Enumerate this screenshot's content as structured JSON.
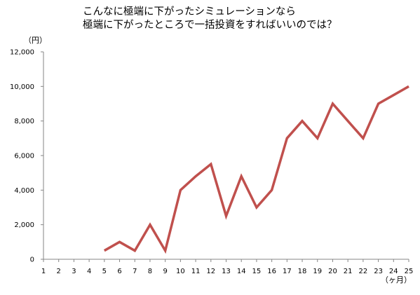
{
  "chart_data": {
    "type": "line",
    "title_lines": [
      "こんなに極端に下がったシミュレーションなら",
      "極端に下がったところで一括投資をすればいいのでは？"
    ],
    "ylabel": "（円）",
    "xlabel": "（ヶ月）",
    "x": [
      1,
      2,
      3,
      4,
      5,
      6,
      7,
      8,
      9,
      10,
      11,
      12,
      13,
      14,
      15,
      16,
      17,
      18,
      19,
      20,
      21,
      22,
      23,
      24,
      25
    ],
    "xlim": [
      1,
      25
    ],
    "ylim": [
      0,
      12000
    ],
    "y_ticks": [
      0,
      2000,
      4000,
      6000,
      8000,
      10000,
      12000
    ],
    "y_tick_labels": [
      "0",
      "2,000",
      "4,000",
      "6,000",
      "8,000",
      "10,000",
      "12,000"
    ],
    "grid": false,
    "legend": "none",
    "series": [
      {
        "color": "#c0504d",
        "points": [
          [
            5,
            500
          ],
          [
            6,
            1000
          ],
          [
            7,
            500
          ],
          [
            8,
            2000
          ],
          [
            9,
            500
          ],
          [
            10,
            4000
          ],
          [
            11,
            4800
          ],
          [
            12,
            5500
          ],
          [
            13,
            2500
          ],
          [
            14,
            4800
          ],
          [
            15,
            3000
          ],
          [
            16,
            4000
          ],
          [
            17,
            7000
          ],
          [
            18,
            8000
          ],
          [
            19,
            7000
          ],
          [
            20,
            9000
          ],
          [
            21,
            8000
          ],
          [
            22,
            7000
          ],
          [
            23,
            9000
          ],
          [
            24,
            9500
          ],
          [
            25,
            10000
          ]
        ]
      }
    ],
    "axis_color": "#868686"
  }
}
